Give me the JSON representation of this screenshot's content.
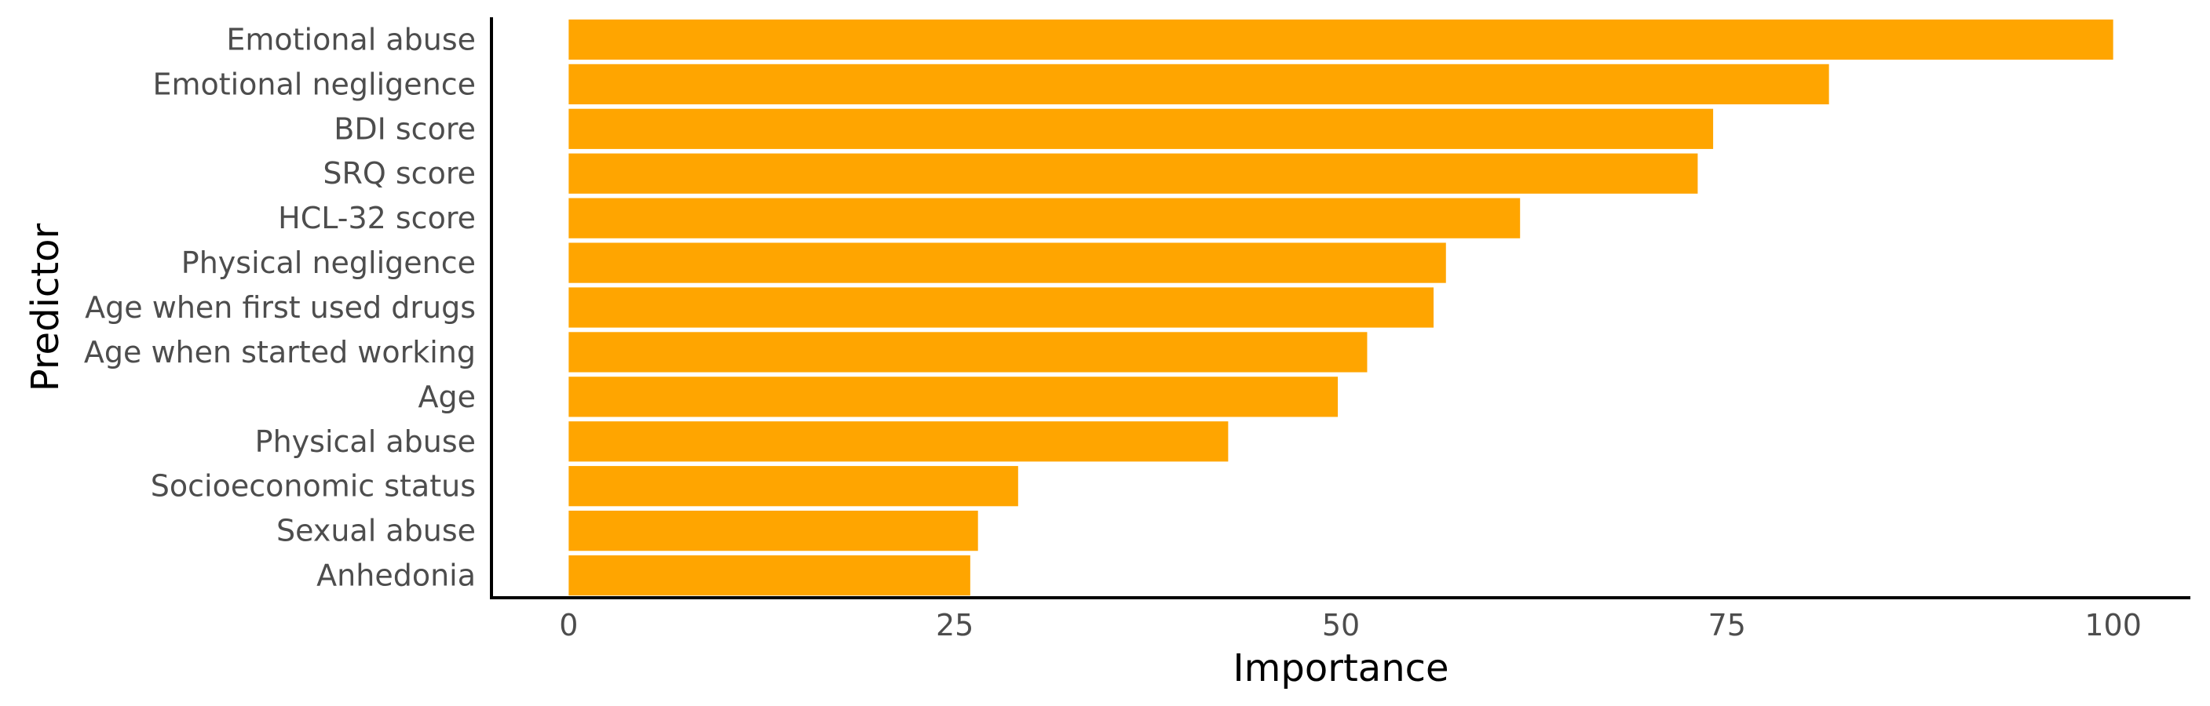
{
  "chart_data": {
    "type": "bar",
    "orientation": "horizontal",
    "categories": [
      "Emotional abuse",
      "Emotional negligence",
      "BDI score",
      "SRQ score",
      "HCL-32 score",
      "Physical negligence",
      "Age when first used drugs",
      "Age when started working",
      "Age",
      "Physical abuse",
      "Socioeconomic status",
      "Sexual abuse",
      "Anhedonia"
    ],
    "values": [
      100,
      81.6,
      74.1,
      73.1,
      61.6,
      56.8,
      56.0,
      51.7,
      49.8,
      42.7,
      29.1,
      26.5,
      26.0
    ],
    "title": "",
    "xlabel": "Importance",
    "ylabel": "Predictor",
    "xlim": [
      -5,
      105
    ],
    "xticks": [
      0,
      25,
      50,
      75,
      100
    ],
    "xtick_labels": [
      "0",
      "25",
      "50",
      "75",
      "100"
    ],
    "grid": false,
    "bar_color": "#FFA500"
  }
}
